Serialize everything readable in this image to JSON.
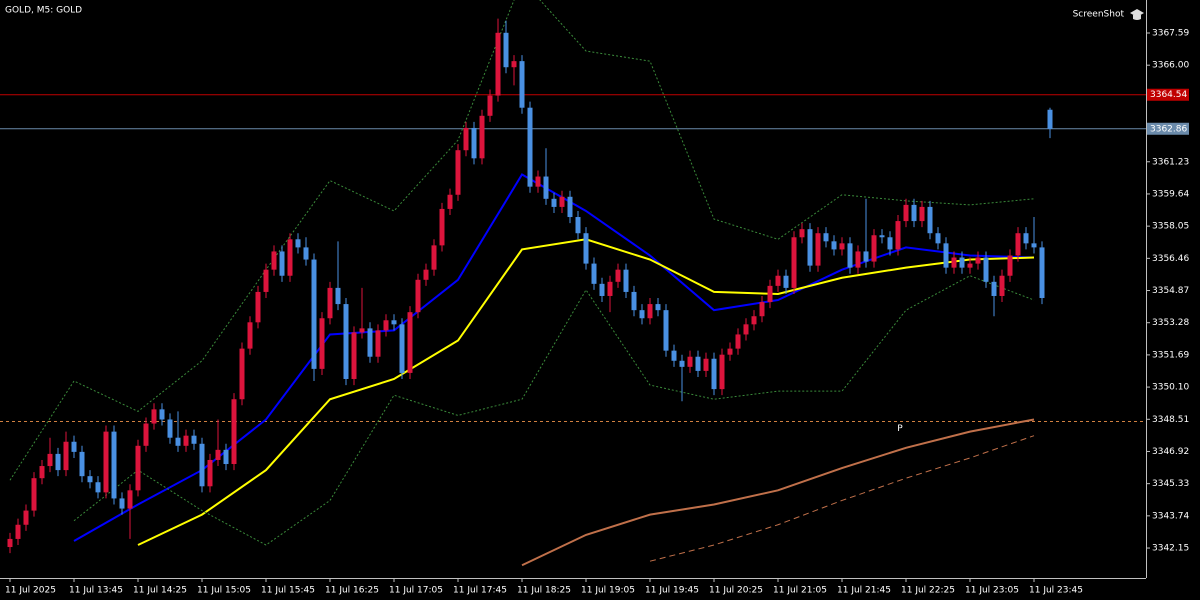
{
  "chart_data": {
    "type": "candlestick",
    "title": "GOLD, M5:  GOLD",
    "watermark": "ScreenShot",
    "up_color": "#dc143c",
    "down_color": "#4a90e2",
    "ylim": [
      3340.67,
      3369.22
    ],
    "yticks": [
      3367.59,
      {
        "value": 3366,
        "label": "3366.00"
      },
      3361.23,
      3359.64,
      3358.05,
      3356.46,
      3354.87,
      3353.28,
      3351.69,
      {
        "value": 3350.1,
        "label": "3350.10"
      },
      3348.51,
      3346.92,
      3345.33,
      3343.74,
      3342.15
    ],
    "categories": [
      "11 Jul 2025",
      null,
      null,
      null,
      null,
      null,
      null,
      null,
      "11 Jul 13:45",
      null,
      null,
      null,
      null,
      null,
      null,
      null,
      "11 Jul 14:25",
      null,
      null,
      null,
      null,
      null,
      null,
      null,
      "11 Jul 15:05",
      null,
      null,
      null,
      null,
      null,
      null,
      null,
      "11 Jul 15:45",
      null,
      null,
      null,
      null,
      null,
      null,
      null,
      "11 Jul 16:25",
      null,
      null,
      null,
      null,
      null,
      null,
      null,
      "11 Jul 17:05",
      null,
      null,
      null,
      null,
      null,
      null,
      null,
      "11 Jul 17:45",
      null,
      null,
      null,
      null,
      null,
      null,
      null,
      "11 Jul 18:25",
      null,
      null,
      null,
      null,
      null,
      null,
      null,
      "11 Jul 19:05",
      null,
      null,
      null,
      null,
      null,
      null,
      null,
      "11 Jul 19:45",
      null,
      null,
      null,
      null,
      null,
      null,
      null,
      "11 Jul 20:25",
      null,
      null,
      null,
      null,
      null,
      null,
      null,
      "11 Jul 21:05",
      null,
      null,
      null,
      null,
      null,
      null,
      null,
      "11 Jul 21:45",
      null,
      null,
      null,
      null,
      null,
      null,
      null,
      "11 Jul 22:25",
      null,
      null,
      null,
      null,
      null,
      null,
      null,
      "11 Jul 23:05",
      null,
      null,
      null,
      null,
      null,
      null,
      null,
      "11 Jul 23:45",
      null,
      null
    ],
    "open": [
      3342.2,
      3342.6,
      3343.3,
      3344.0,
      3345.6,
      3346.2,
      3346.8,
      3346.0,
      3347.4,
      3346.9,
      3345.7,
      3345.4,
      3344.9,
      3347.9,
      3344.6,
      3344.1,
      3345.0,
      3347.2,
      3348.3,
      3349.0,
      3348.5,
      3347.6,
      3347.2,
      3347.7,
      3347.3,
      3345.2,
      3346.5,
      3347.0,
      3346.3,
      3349.5,
      3352.0,
      3353.3,
      3354.8,
      3355.9,
      3356.8,
      3355.6,
      3357.4,
      3357.0,
      3356.4,
      3351.0,
      3353.5,
      3355.0,
      3354.2,
      3350.5,
      3352.8,
      3353.0,
      3351.6,
      3352.9,
      3353.4,
      3353.2,
      3350.8,
      3353.8,
      3355.4,
      3355.9,
      3357.1,
      3358.9,
      3359.6,
      3361.8,
      3362.9,
      3361.4,
      3363.5,
      3364.5,
      3367.6,
      3365.9,
      3366.2,
      3363.9,
      3360.0,
      3360.5,
      3359.4,
      3359.0,
      3359.5,
      3358.5,
      3357.7,
      3356.2,
      3355.2,
      3354.6,
      3355.3,
      3355.9,
      3354.8,
      3353.9,
      3353.5,
      3354.2,
      3353.9,
      3351.9,
      3351.4,
      3351.1,
      3351.6,
      3350.9,
      3351.5,
      3350.0,
      3351.7,
      3352.0,
      3352.7,
      3353.2,
      3353.6,
      3354.3,
      3355.1,
      3355.6,
      3355.0,
      3357.5,
      3357.9,
      3356.1,
      3357.7,
      3357.3,
      3356.9,
      3357.2,
      3356.0,
      3356.8,
      3356.3,
      3357.6,
      3357.5,
      3356.9,
      3358.3,
      3359.1,
      3358.3,
      3359.0,
      3357.7,
      3357.2,
      3356.0,
      3356.5,
      3356.0,
      3356.2,
      3356.5,
      3355.3,
      3354.6,
      3355.6,
      3356.6,
      3357.7,
      3357.2,
      3357.0,
      3363.8
    ],
    "high": [
      3342.9,
      3343.6,
      3344.3,
      3345.9,
      3346.5,
      3347.6,
      3347.1,
      3347.9,
      3347.7,
      3347.2,
      3346.0,
      3345.7,
      3348.2,
      3348.2,
      3344.9,
      3345.3,
      3347.5,
      3348.6,
      3349.3,
      3349.3,
      3348.8,
      3348.9,
      3348.0,
      3348.0,
      3347.6,
      3346.8,
      3348.5,
      3347.3,
      3349.8,
      3352.3,
      3353.6,
      3355.1,
      3356.2,
      3357.1,
      3357.1,
      3357.7,
      3357.7,
      3357.5,
      3356.7,
      3353.8,
      3355.3,
      3357.3,
      3354.5,
      3353.1,
      3355.0,
      3353.3,
      3353.2,
      3353.7,
      3353.7,
      3353.5,
      3354.1,
      3355.7,
      3356.2,
      3357.4,
      3359.2,
      3359.9,
      3362.1,
      3363.2,
      3363.2,
      3363.8,
      3364.8,
      3368.3,
      3368.2,
      3366.5,
      3366.5,
      3364.2,
      3360.8,
      3361.9,
      3359.7,
      3359.8,
      3359.8,
      3358.8,
      3358.0,
      3356.5,
      3355.5,
      3355.6,
      3356.2,
      3356.2,
      3355.1,
      3354.2,
      3354.5,
      3354.5,
      3354.2,
      3352.2,
      3351.7,
      3351.9,
      3351.9,
      3351.8,
      3351.8,
      3352.0,
      3352.3,
      3353.0,
      3353.5,
      3353.9,
      3354.6,
      3355.4,
      3355.9,
      3355.9,
      3357.8,
      3358.2,
      3358.2,
      3358.0,
      3358.0,
      3357.6,
      3357.5,
      3357.5,
      3357.1,
      3359.4,
      3357.9,
      3357.9,
      3357.8,
      3358.6,
      3359.4,
      3359.4,
      3359.3,
      3359.3,
      3358.0,
      3357.5,
      3356.8,
      3356.8,
      3356.5,
      3356.8,
      3356.8,
      3355.6,
      3355.9,
      3356.9,
      3358.0,
      3358.0,
      3358.5,
      3357.3,
      3363.9
    ],
    "low": [
      3341.9,
      3342.3,
      3343.0,
      3343.7,
      3345.3,
      3345.9,
      3345.7,
      3345.7,
      3346.6,
      3345.4,
      3345.1,
      3344.6,
      3344.6,
      3344.3,
      3343.8,
      3342.6,
      3344.7,
      3346.9,
      3348.0,
      3348.2,
      3347.3,
      3346.9,
      3346.9,
      3347.0,
      3344.9,
      3344.9,
      3346.2,
      3346.0,
      3346.0,
      3349.2,
      3351.7,
      3353.0,
      3354.5,
      3355.6,
      3355.3,
      3355.3,
      3356.7,
      3356.1,
      3350.4,
      3350.7,
      3353.2,
      3353.9,
      3350.2,
      3350.2,
      3352.5,
      3351.3,
      3351.3,
      3352.6,
      3352.9,
      3350.5,
      3350.5,
      3353.5,
      3355.1,
      3355.6,
      3356.8,
      3358.6,
      3359.3,
      3361.5,
      3361.1,
      3361.1,
      3363.2,
      3364.2,
      3365.6,
      3365.0,
      3363.6,
      3359.7,
      3359.7,
      3359.1,
      3358.7,
      3358.7,
      3358.2,
      3357.4,
      3355.9,
      3354.9,
      3354.3,
      3353.8,
      3355.0,
      3354.5,
      3353.6,
      3353.2,
      3353.2,
      3353.6,
      3351.6,
      3351.1,
      3349.4,
      3350.8,
      3350.6,
      3350.6,
      3349.7,
      3349.7,
      3351.4,
      3351.7,
      3352.4,
      3352.9,
      3353.3,
      3354.0,
      3354.8,
      3354.7,
      3354.7,
      3357.2,
      3355.8,
      3355.8,
      3357.0,
      3356.6,
      3356.6,
      3355.7,
      3355.7,
      3356.0,
      3356.0,
      3357.2,
      3356.6,
      3356.6,
      3358.0,
      3358.0,
      3358.0,
      3357.4,
      3356.9,
      3355.7,
      3355.7,
      3355.7,
      3355.7,
      3355.9,
      3355.0,
      3353.6,
      3354.3,
      3355.3,
      3356.3,
      3356.9,
      3356.7,
      3354.2,
      3362.4
    ],
    "close": [
      3342.6,
      3343.3,
      3344.0,
      3345.6,
      3346.2,
      3346.8,
      3346.0,
      3347.4,
      3346.9,
      3345.7,
      3345.4,
      3344.9,
      3347.9,
      3344.6,
      3344.1,
      3345.0,
      3347.2,
      3348.3,
      3349.0,
      3348.5,
      3347.6,
      3347.2,
      3347.7,
      3347.3,
      3345.2,
      3346.5,
      3347.0,
      3346.3,
      3349.5,
      3352.0,
      3353.3,
      3354.8,
      3355.9,
      3356.8,
      3355.6,
      3357.4,
      3357.0,
      3356.4,
      3351.0,
      3353.5,
      3355.0,
      3354.2,
      3350.5,
      3352.8,
      3353.0,
      3351.6,
      3352.9,
      3353.4,
      3353.2,
      3350.8,
      3353.8,
      3355.4,
      3355.9,
      3357.1,
      3358.9,
      3359.6,
      3361.8,
      3362.9,
      3361.4,
      3363.5,
      3364.5,
      3367.6,
      3365.9,
      3366.2,
      3363.9,
      3360.0,
      3360.5,
      3359.4,
      3359.0,
      3359.5,
      3358.5,
      3357.7,
      3356.2,
      3355.2,
      3354.6,
      3355.3,
      3355.9,
      3354.8,
      3353.9,
      3353.5,
      3354.2,
      3353.9,
      3351.9,
      3351.4,
      3351.1,
      3351.6,
      3350.9,
      3351.5,
      3350.0,
      3351.7,
      3352.0,
      3352.7,
      3353.2,
      3353.6,
      3354.3,
      3355.1,
      3355.6,
      3355.0,
      3357.5,
      3357.9,
      3356.1,
      3357.7,
      3357.3,
      3356.9,
      3357.2,
      3356.0,
      3356.8,
      3356.3,
      3357.6,
      3357.5,
      3356.9,
      3358.3,
      3359.1,
      3358.3,
      3359.0,
      3357.7,
      3357.2,
      3356.0,
      3356.5,
      3356.0,
      3356.2,
      3356.5,
      3355.3,
      3354.6,
      3355.6,
      3356.6,
      3357.7,
      3357.2,
      3357.0,
      3354.5,
      3362.86
    ],
    "series": [
      {
        "color": "#0000ff",
        "width": 2,
        "dash": "none",
        "x": [
          0,
          8,
          16,
          24,
          32,
          40,
          48,
          56,
          64,
          72,
          80,
          88,
          96,
          104,
          112,
          120,
          128
        ],
        "values": [
          null,
          3342.5,
          3344.3,
          3346.0,
          3348.5,
          3352.7,
          3352.9,
          3355.4,
          3360.6,
          3358.8,
          3356.6,
          3353.9,
          3354.4,
          3355.9,
          3357.0,
          3356.6,
          3356.5
        ]
      },
      {
        "color": "#ffff00",
        "width": 2,
        "dash": "none",
        "x": [
          0,
          8,
          16,
          24,
          32,
          40,
          48,
          56,
          64,
          72,
          80,
          88,
          96,
          104,
          112,
          120,
          128
        ],
        "values": [
          null,
          null,
          3342.3,
          3343.8,
          3346.0,
          3349.5,
          3350.5,
          3352.4,
          3356.9,
          3357.4,
          3356.4,
          3354.8,
          3354.7,
          3355.5,
          3356.0,
          3356.4,
          3356.5
        ]
      },
      {
        "color": "#3a8a3a",
        "width": 1,
        "dash": "2,2",
        "x": [
          0,
          8,
          16,
          24,
          32,
          40,
          48,
          56,
          64,
          72,
          80,
          88,
          96,
          104,
          112,
          120,
          128
        ],
        "values": [
          3345.5,
          3350.4,
          3348.9,
          3351.4,
          3355.9,
          3360.3,
          3358.8,
          3362.3,
          3370.2,
          3366.7,
          3366.2,
          3358.4,
          3357.4,
          3359.6,
          3359.3,
          3359.1,
          3359.4
        ]
      },
      {
        "color": "#3a8a3a",
        "width": 1,
        "dash": "2,2",
        "x": [
          0,
          8,
          16,
          24,
          32,
          40,
          48,
          56,
          64,
          72,
          80,
          88,
          96,
          104,
          112,
          120,
          128
        ],
        "values": [
          null,
          3343.5,
          3346.0,
          3344.0,
          3342.3,
          3344.5,
          3349.7,
          3348.7,
          3349.5,
          3354.9,
          3350.2,
          3349.5,
          3349.9,
          3349.9,
          3353.9,
          3355.6,
          3354.4
        ]
      },
      {
        "color": "#c0704a",
        "width": 2,
        "dash": "none",
        "x": [
          0,
          8,
          16,
          24,
          32,
          40,
          48,
          56,
          64,
          72,
          80,
          88,
          96,
          104,
          112,
          120,
          128
        ],
        "values": [
          null,
          null,
          null,
          null,
          null,
          null,
          null,
          null,
          3341.3,
          3342.8,
          3343.8,
          3344.3,
          3345.0,
          3346.1,
          3347.1,
          3347.9,
          3348.5
        ]
      },
      {
        "color": "#c0704a",
        "width": 1,
        "dash": "6,4",
        "x": [
          0,
          8,
          16,
          24,
          32,
          40,
          48,
          56,
          64,
          72,
          80,
          88,
          96,
          104,
          112,
          120,
          128
        ],
        "values": [
          null,
          null,
          null,
          null,
          null,
          null,
          null,
          null,
          null,
          null,
          3341.5,
          3342.3,
          3343.3,
          3344.5,
          3345.6,
          3346.6,
          3347.7
        ]
      }
    ],
    "hlines": [
      {
        "value": 3364.54,
        "color": "#c00000",
        "dash": "none"
      },
      {
        "value": 3362.86,
        "color": "#6a8aaa",
        "dash": "none"
      },
      {
        "value": 3348.4,
        "label": "P",
        "color": "#d08040",
        "dash": "3,3"
      }
    ]
  }
}
